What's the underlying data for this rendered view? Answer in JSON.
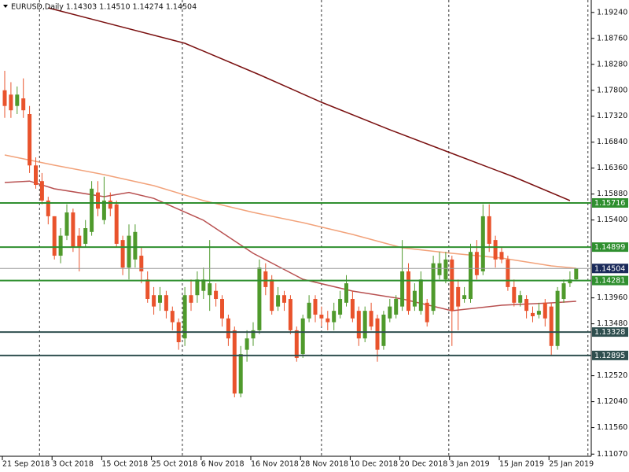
{
  "chart_data": {
    "type": "candlestick",
    "title": "EURUSD,Daily  1.14303 1.14510 1.14274 1.14504",
    "categories": [
      "21 Sep 2018",
      null,
      null,
      null,
      null,
      null,
      null,
      null,
      "3 Oct 2018",
      null,
      null,
      null,
      null,
      null,
      null,
      null,
      "15 Oct 2018",
      null,
      null,
      null,
      null,
      null,
      null,
      null,
      "25 Oct 2018",
      null,
      null,
      null,
      null,
      null,
      null,
      null,
      "6 Nov 2018",
      null,
      null,
      null,
      null,
      null,
      null,
      null,
      "16 Nov 2018",
      null,
      null,
      null,
      null,
      null,
      null,
      null,
      "28 Nov 2018",
      null,
      null,
      null,
      null,
      null,
      null,
      null,
      "10 Dec 2018",
      null,
      null,
      null,
      null,
      null,
      null,
      null,
      "20 Dec 2018",
      null,
      null,
      null,
      null,
      null,
      null,
      null,
      "3 Jan 2019",
      null,
      null,
      null,
      null,
      null,
      null,
      null,
      "15 Jan 2019",
      null,
      null,
      null,
      null,
      null,
      null,
      null,
      "25 Jan 2019",
      null,
      null,
      null,
      null
    ],
    "open": [
      1.178,
      1.1772,
      1.1751,
      1.1765,
      1.1736,
      1.1641,
      1.1612,
      1.1576,
      1.1547,
      1.1474,
      1.1511,
      1.1554,
      1.1511,
      1.1496,
      1.1518,
      1.1591,
      1.154,
      1.1576,
      1.1569,
      1.1503,
      1.1452,
      1.1467,
      1.1474,
      1.143,
      1.1401,
      1.1387,
      1.1401,
      1.1372,
      1.1351,
      1.1321,
      1.1401,
      1.1401,
      1.1409,
      1.1401,
      1.1409,
      1.1394,
      1.1358,
      1.1336,
      1.1219,
      1.13,
      1.1321,
      1.1336,
      1.1445,
      1.143,
      1.138,
      1.1401,
      1.1394,
      1.1336,
      1.1292,
      1.1358,
      1.1394,
      1.1365,
      1.1358,
      1.1351,
      1.1365,
      1.1387,
      1.1394,
      1.1372,
      1.1321,
      1.1372,
      1.1358,
      1.1307,
      1.1358,
      1.1365,
      1.138,
      1.1445,
      1.138,
      1.1372,
      1.1387,
      1.1372,
      1.1438,
      1.143,
      1.1467,
      1.1416,
      1.1394,
      1.1394,
      1.1481,
      1.1445,
      1.1547,
      1.1503,
      1.1481,
      1.1467,
      1.1416,
      1.1387,
      1.1394,
      1.1368,
      1.1365,
      1.1387,
      1.138,
      1.1307,
      1.1394,
      1.1423,
      1.14303
    ],
    "high": [
      1.1816,
      1.1795,
      1.1787,
      1.1802,
      1.1751,
      1.1656,
      1.1627,
      1.1583,
      1.1547,
      1.1525,
      1.1569,
      1.1561,
      1.1525,
      1.154,
      1.1612,
      1.1612,
      1.162,
      1.1591,
      1.1576,
      1.1511,
      1.1532,
      1.1532,
      1.1489,
      1.1445,
      1.1416,
      1.1416,
      1.1409,
      1.138,
      1.1358,
      1.1416,
      1.143,
      1.1445,
      1.1452,
      1.1503,
      1.1423,
      1.1401,
      1.1365,
      1.1343,
      1.1307,
      1.1336,
      1.1351,
      1.1467,
      1.146,
      1.1438,
      1.1416,
      1.1409,
      1.1401,
      1.1343,
      1.1365,
      1.1401,
      1.1401,
      1.138,
      1.1372,
      1.1387,
      1.1409,
      1.1438,
      1.1409,
      1.138,
      1.138,
      1.1387,
      1.1365,
      1.1372,
      1.1394,
      1.1401,
      1.1503,
      1.146,
      1.1423,
      1.1445,
      1.1394,
      1.1474,
      1.1481,
      1.1481,
      1.1474,
      1.143,
      1.1416,
      1.1496,
      1.1503,
      1.1569,
      1.1569,
      1.1511,
      1.1489,
      1.1474,
      1.143,
      1.1409,
      1.1401,
      1.138,
      1.1387,
      1.1394,
      1.1387,
      1.1416,
      1.143,
      1.1445,
      1.1451
    ],
    "low": [
      1.1729,
      1.1729,
      1.1736,
      1.1729,
      1.1627,
      1.1598,
      1.1569,
      1.1532,
      1.1467,
      1.146,
      1.1503,
      1.1481,
      1.1445,
      1.1489,
      1.1511,
      1.1547,
      1.1532,
      1.1547,
      1.1489,
      1.1438,
      1.143,
      1.1452,
      1.1423,
      1.1387,
      1.1365,
      1.1372,
      1.1358,
      1.1336,
      1.13,
      1.1307,
      1.1372,
      1.1387,
      1.1394,
      1.1372,
      1.138,
      1.1343,
      1.1307,
      1.1212,
      1.1212,
      1.1278,
      1.1307,
      1.1329,
      1.1401,
      1.1365,
      1.1372,
      1.1372,
      1.1329,
      1.1278,
      1.1285,
      1.1351,
      1.1351,
      1.1343,
      1.1336,
      1.1336,
      1.1358,
      1.138,
      1.1351,
      1.1307,
      1.1314,
      1.1336,
      1.1278,
      1.13,
      1.1351,
      1.1358,
      1.1372,
      1.1365,
      1.1372,
      1.1365,
      1.1343,
      1.1365,
      1.143,
      1.1423,
      1.1307,
      1.1336,
      1.1387,
      1.1387,
      1.143,
      1.1438,
      1.1481,
      1.1452,
      1.146,
      1.1409,
      1.138,
      1.138,
      1.1358,
      1.1351,
      1.1358,
      1.1343,
      1.1289,
      1.13,
      1.1387,
      1.1416,
      1.14274
    ],
    "close": [
      1.1751,
      1.1743,
      1.1772,
      1.1743,
      1.1641,
      1.1605,
      1.1576,
      1.1547,
      1.1474,
      1.1511,
      1.1554,
      1.1489,
      1.1489,
      1.1525,
      1.1598,
      1.1561,
      1.1576,
      1.1561,
      1.1496,
      1.1452,
      1.1511,
      1.1518,
      1.1445,
      1.1394,
      1.138,
      1.1401,
      1.1372,
      1.1351,
      1.1314,
      1.1401,
      1.1387,
      1.143,
      1.143,
      1.1423,
      1.1394,
      1.1358,
      1.1321,
      1.1219,
      1.1292,
      1.1321,
      1.1336,
      1.1452,
      1.1416,
      1.1372,
      1.1401,
      1.1387,
      1.1336,
      1.1285,
      1.1358,
      1.1387,
      1.1365,
      1.1358,
      1.1351,
      1.1372,
      1.1394,
      1.1423,
      1.1358,
      1.1321,
      1.1372,
      1.1343,
      1.13,
      1.1365,
      1.138,
      1.1394,
      1.1445,
      1.1372,
      1.1409,
      1.143,
      1.1351,
      1.146,
      1.146,
      1.1467,
      1.1372,
      1.138,
      1.1401,
      1.1481,
      1.1438,
      1.1547,
      1.1496,
      1.1467,
      1.1467,
      1.1416,
      1.1387,
      1.1401,
      1.1372,
      1.1362,
      1.1372,
      1.1358,
      1.1307,
      1.1409,
      1.1423,
      1.143,
      1.14504
    ],
    "up_color": "#4f9a2c",
    "down_color": "#e9532c",
    "lines": [
      {
        "color": "#7a1010",
        "x": [
          7,
          29,
          41,
          51,
          62,
          72,
          82,
          91
        ],
        "values": [
          1.19325,
          1.1867,
          1.18088,
          1.17578,
          1.1707,
          1.16632,
          1.16196,
          1.15759
        ]
      },
      {
        "color": "#f2a27a",
        "x": [
          0,
          8,
          16,
          24,
          32,
          40,
          48,
          56,
          64,
          72,
          80,
          88,
          92
        ],
        "values": [
          1.16603,
          1.16414,
          1.1624,
          1.16036,
          1.15759,
          1.15541,
          1.15352,
          1.15134,
          1.14886,
          1.14785,
          1.14697,
          1.14552,
          1.14508
        ]
      },
      {
        "color": "#b85050",
        "x": [
          0,
          4,
          8,
          16,
          20,
          24,
          32,
          40,
          48,
          56,
          64,
          72,
          80,
          88,
          92
        ],
        "values": [
          1.16094,
          1.1612,
          1.15978,
          1.15832,
          1.1591,
          1.158,
          1.15396,
          1.14785,
          1.14304,
          1.14086,
          1.1394,
          1.13722,
          1.13824,
          1.13868,
          1.13897
        ]
      }
    ],
    "levels": [
      {
        "value": 1.15716,
        "color": "#2f8f2f"
      },
      {
        "value": 1.14899,
        "color": "#2f8f2f"
      },
      {
        "value": 1.14504,
        "color": "#1a2a5a"
      },
      {
        "value": 1.14281,
        "color": "#2f8f2f"
      },
      {
        "value": 1.13328,
        "color": "#2f4f4f"
      },
      {
        "value": 1.12895,
        "color": "#2f4f4f"
      }
    ],
    "ylim": [
      1.1103,
      1.1947
    ],
    "yticks": [
      {
        "value": 1.1924,
        "label": "1.19240"
      },
      {
        "value": 1.1876,
        "label": "1.18760"
      },
      {
        "value": 1.1828,
        "label": "1.18280"
      },
      {
        "value": 1.178,
        "label": "1.17800"
      },
      {
        "value": 1.1732,
        "label": "1.17320"
      },
      {
        "value": 1.1684,
        "label": "1.16840"
      },
      {
        "value": 1.1636,
        "label": "1.16360"
      },
      {
        "value": 1.1588,
        "label": "1.15880"
      },
      {
        "value": 1.154,
        "label": "1.15400"
      },
      {
        "value": 1.1396,
        "label": "1.13960"
      },
      {
        "value": 1.1348,
        "label": "1.13480"
      },
      {
        "value": 1.1252,
        "label": "1.12520"
      },
      {
        "value": 1.1204,
        "label": "1.12040"
      },
      {
        "value": 1.1156,
        "label": "1.11560"
      },
      {
        "value": 1.1107,
        "label": "1.11070"
      }
    ]
  }
}
